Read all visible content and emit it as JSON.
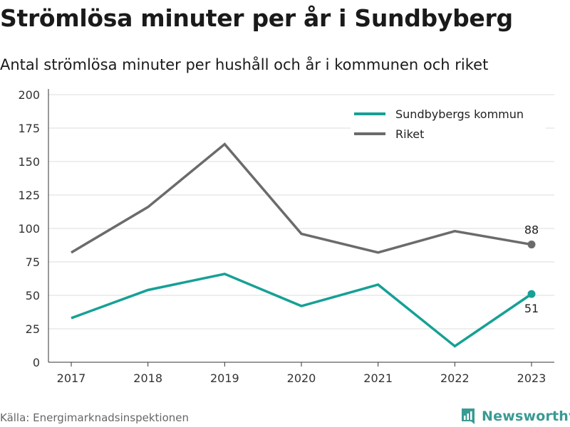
{
  "title": "Strömlösa minuter per år i Sundbyberg",
  "subtitle": "Antal strömlösa minuter per hushåll och år i kommunen och riket",
  "source": "Källa: Energimarknadsinspektionen",
  "brand": {
    "name": "Newsworthy",
    "logo_icon": "newsworthy-logo-icon"
  },
  "colors": {
    "sundbyberg": "#16a096",
    "riket": "#6b6b6b",
    "grid": "#dddddd",
    "axis": "#333333",
    "text": "#333333"
  },
  "chart_data": {
    "type": "line",
    "categories": [
      "2017",
      "2018",
      "2019",
      "2020",
      "2021",
      "2022",
      "2023"
    ],
    "series": [
      {
        "name": "Sundbybergs kommun",
        "values": [
          33,
          54,
          66,
          42,
          58,
          12,
          51
        ]
      },
      {
        "name": "Riket",
        "values": [
          82,
          116,
          163,
          96,
          82,
          98,
          88
        ]
      }
    ],
    "yticks": [
      0,
      25,
      50,
      75,
      100,
      125,
      150,
      175,
      200
    ],
    "ylim": [
      0,
      200
    ],
    "end_labels": [
      "51",
      "88"
    ],
    "legend_position": "top-right",
    "grid": true,
    "xlabel": "",
    "ylabel": ""
  }
}
